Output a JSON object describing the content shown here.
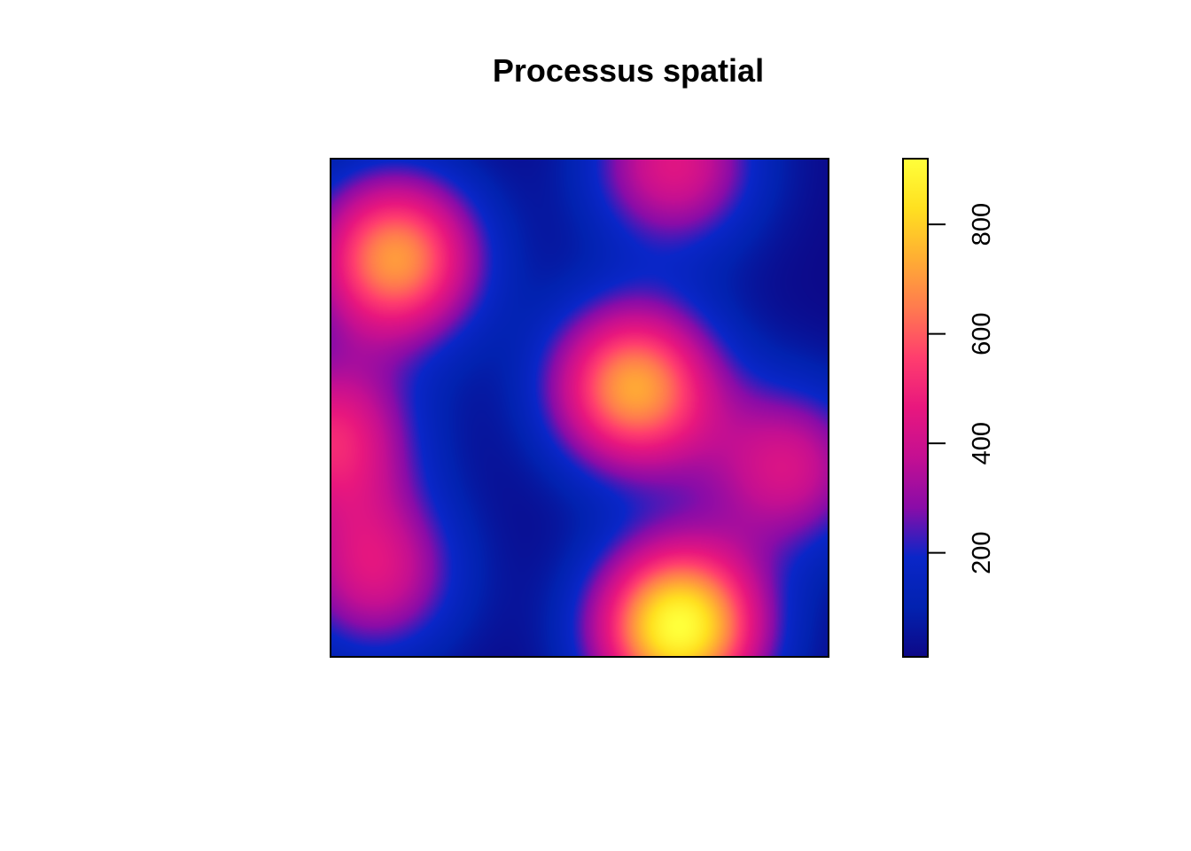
{
  "chart_data": {
    "type": "heatmap",
    "title": "Processus spatial",
    "xlabel": "",
    "ylabel": "",
    "x_axis_shown": false,
    "y_axis_shown": false,
    "field_range": [
      10,
      920
    ],
    "field_peaks": [
      {
        "x": 0.13,
        "y": 0.2,
        "value": 700
      },
      {
        "x": 0.61,
        "y": 0.46,
        "value": 720
      },
      {
        "x": 0.7,
        "y": 0.94,
        "value": 920
      },
      {
        "x": 0.0,
        "y": 0.56,
        "value": 480
      },
      {
        "x": 0.09,
        "y": 0.83,
        "value": 420
      },
      {
        "x": 0.69,
        "y": 0.01,
        "value": 440
      },
      {
        "x": 0.92,
        "y": 0.62,
        "value": 410
      }
    ],
    "colorbar": {
      "range": [
        10,
        920
      ],
      "ticks": [
        200,
        400,
        600,
        800
      ],
      "tick_labels": [
        "200",
        "400",
        "600",
        "800"
      ],
      "palette": [
        "#0D0887",
        "#0222B0",
        "#0A26C8",
        "#8A0CA8",
        "#C40F92",
        "#E8177E",
        "#FF3D6E",
        "#FF7A4F",
        "#FFAE33",
        "#FFE020",
        "#FFFF3A"
      ]
    }
  }
}
